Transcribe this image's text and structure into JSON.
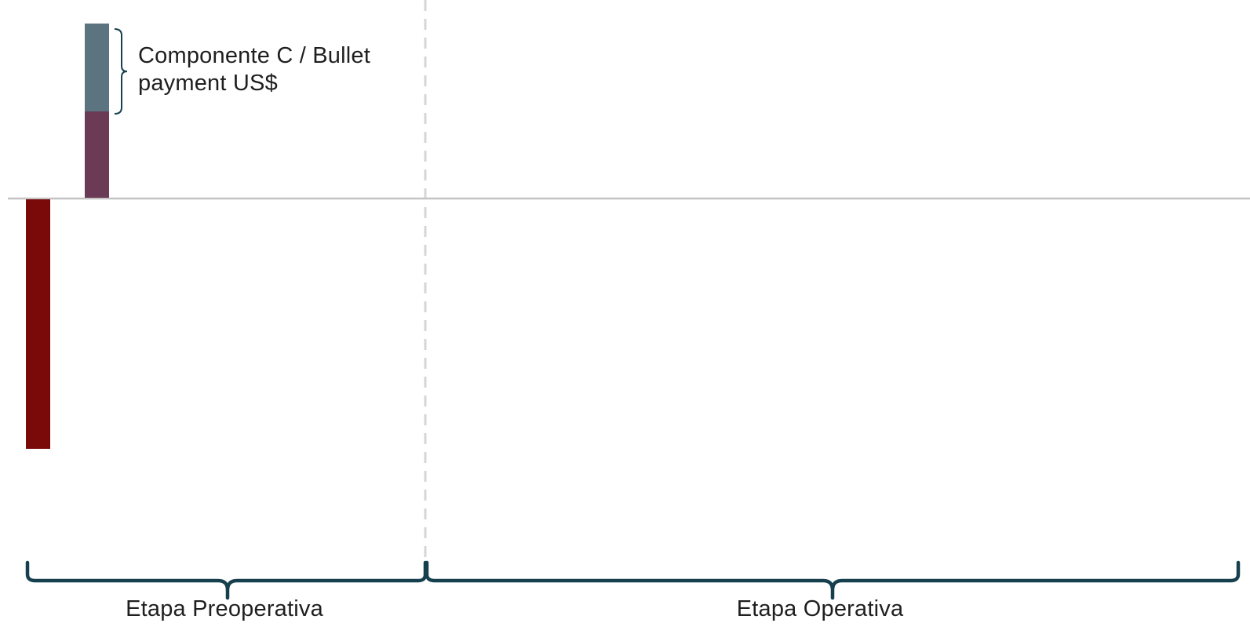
{
  "annotation": {
    "line1": "Componente C / Bullet",
    "line2": "payment US$"
  },
  "phases": {
    "preoperativa": "Etapa Preoperativa",
    "operativa": "Etapa Operativa"
  },
  "colors": {
    "outflow_bar": "#7a0a0a",
    "inflow_bar_lower": "#6b3a55",
    "inflow_bar_upper": "#5b7480",
    "brace": "#17404e",
    "baseline": "#c4c4c4",
    "divider": "#d6d6d6"
  }
}
